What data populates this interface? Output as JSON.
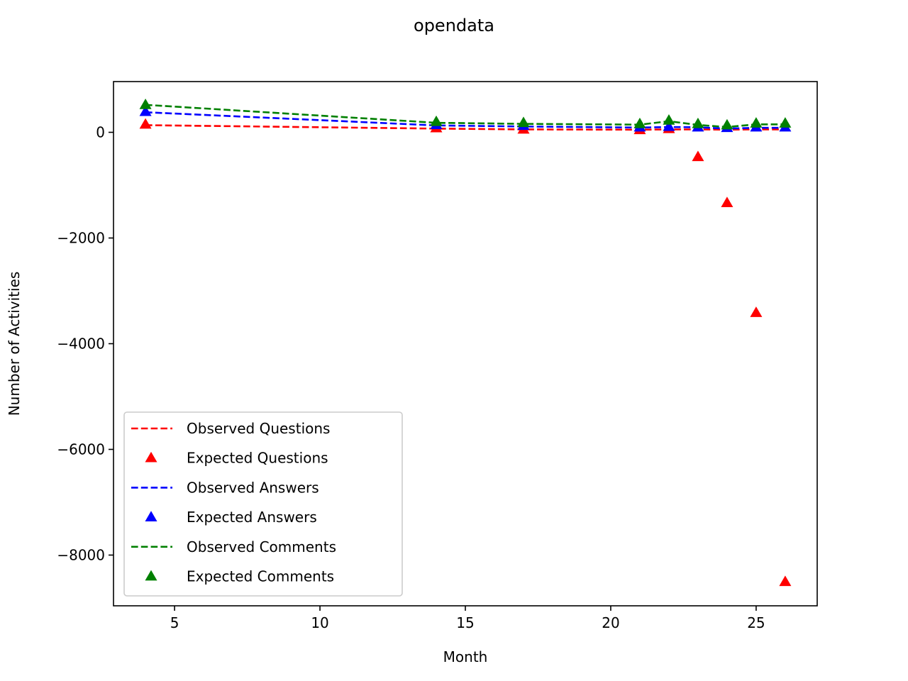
{
  "chart_data": {
    "type": "line",
    "title": "opendata",
    "xlabel": "Month",
    "ylabel": "Number of Activities",
    "xlim": [
      2.9,
      27.1
    ],
    "ylim": [
      -8960,
      960
    ],
    "xticks": [
      5,
      10,
      15,
      20,
      25
    ],
    "yticks": [
      0,
      -2000,
      -4000,
      -6000,
      -8000
    ],
    "ytick_labels": [
      "0",
      "−2000",
      "−4000",
      "−6000",
      "−8000"
    ],
    "legend_position": "lower-left",
    "x": [
      4,
      14,
      17,
      21,
      22,
      23,
      24,
      25,
      26
    ],
    "series": [
      {
        "name": "Observed Questions",
        "style": "dashed-line",
        "color": "#ff0000",
        "values": [
          135,
          70,
          55,
          50,
          55,
          55,
          50,
          55,
          55
        ]
      },
      {
        "name": "Expected Questions",
        "style": "triangle-markers",
        "color": "#ff0000",
        "values": [
          135,
          65,
          40,
          30,
          50,
          -480,
          -1350,
          -3430,
          -8520
        ]
      },
      {
        "name": "Observed Answers",
        "style": "dashed-line",
        "color": "#0000ff",
        "values": [
          380,
          130,
          110,
          90,
          100,
          95,
          70,
          85,
          85
        ]
      },
      {
        "name": "Expected Answers",
        "style": "triangle-markers",
        "color": "#0000ff",
        "values": [
          375,
          125,
          110,
          80,
          90,
          80,
          70,
          80,
          80
        ]
      },
      {
        "name": "Observed Comments",
        "style": "dashed-line",
        "color": "#008000",
        "values": [
          520,
          180,
          160,
          145,
          210,
          140,
          100,
          150,
          150
        ]
      },
      {
        "name": "Expected Comments",
        "style": "triangle-markers",
        "color": "#008000",
        "values": [
          505,
          185,
          165,
          145,
          210,
          145,
          120,
          155,
          155
        ]
      }
    ]
  }
}
